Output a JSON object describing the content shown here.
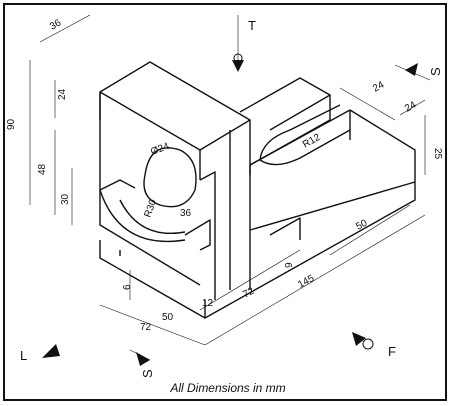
{
  "figure": {
    "caption": "All Dimensions in mm",
    "view_labels": {
      "top": "T",
      "left": "L",
      "front": "F",
      "section_right": "S",
      "section_bottom": "S"
    },
    "dimensions": {
      "d36_top": "36",
      "d90": "90",
      "d24_left": "24",
      "d48": "48",
      "d30_left": "30",
      "phi24": "Ø24",
      "r30": "R30",
      "d36_slot": "36",
      "d6": "6",
      "d50_bottom": "50",
      "d72_bottom": "72",
      "d12": "12",
      "d72_mid": "72",
      "d145": "145",
      "d9": "9",
      "d50_right": "50",
      "r12": "R12",
      "d24_right_a": "24",
      "d24_right_b": "24",
      "d25": "25"
    },
    "colors": {
      "ink": "#111111",
      "paper": "#ffffff"
    }
  }
}
